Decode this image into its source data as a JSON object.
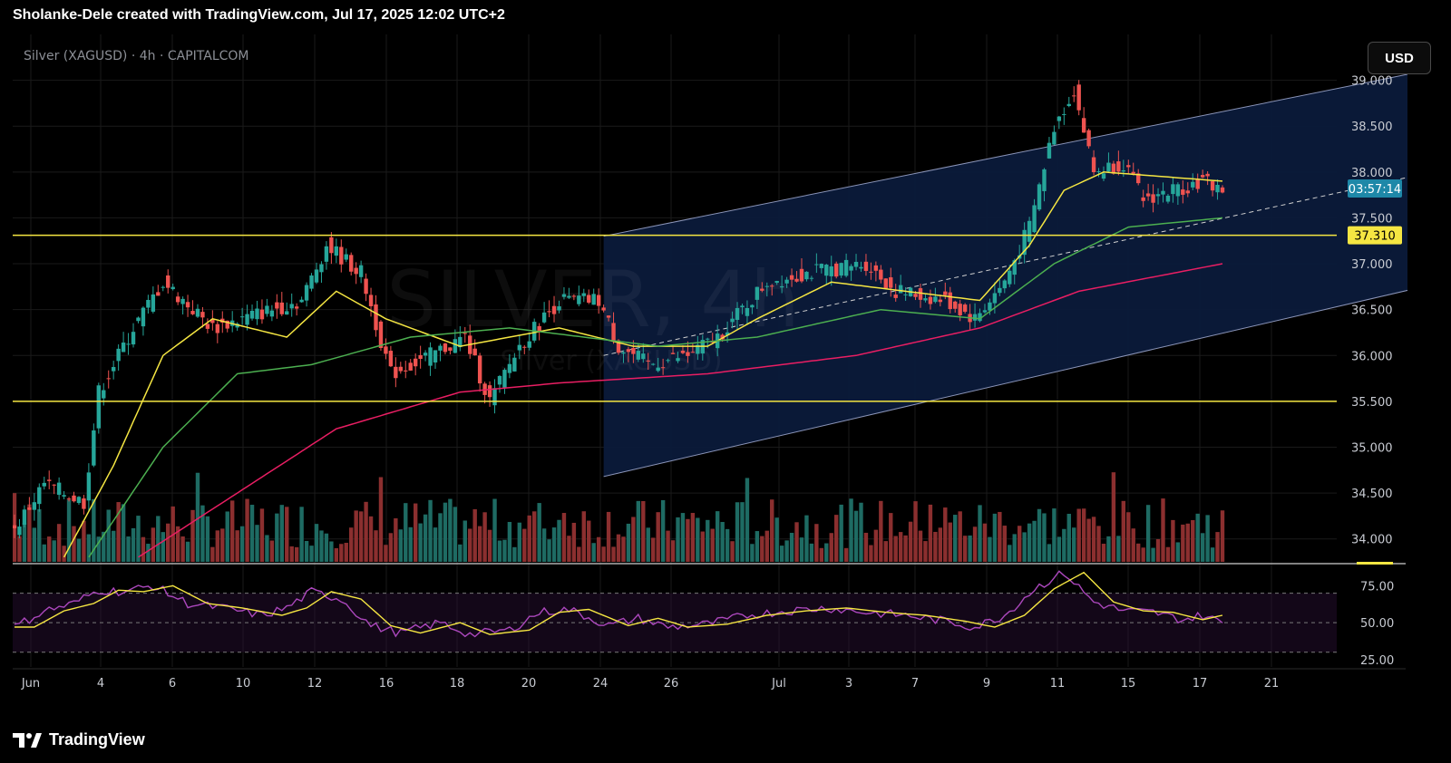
{
  "header": {
    "text": "Sholanke-Dele created with TradingView.com, Jul 17, 2025 12:02 UTC+2"
  },
  "symbol_label": "Silver (XAGUSD) · 4h · CAPITALCOM",
  "watermark": {
    "line1": "SILVER, 4h",
    "line2": "Silver (XAGUSD)"
  },
  "currency_button": "USD",
  "countdown_tag": "03:57:14",
  "level_tag": "37.310",
  "footer": {
    "brand": "TradingView"
  },
  "colors": {
    "bull": "#26a69a",
    "bear": "#ef5350",
    "bull_volume": "#1e6b63",
    "bear_volume": "#8b2f2f",
    "ma_yellow": "#f5e642",
    "ma_green": "#4caf50",
    "ma_red": "#e91e63",
    "channel_fill": "#0b1a3a",
    "horizontal_line": "#f5e642",
    "rsi_line": "#ab47bc",
    "rsi_ma": "#f5e642"
  },
  "chart_data": {
    "type": "candlestick",
    "title": "Silver (XAGUSD) · 4h · CAPITALCOM",
    "x_ticks": [
      "Jun",
      "4",
      "6",
      "10",
      "12",
      "16",
      "18",
      "20",
      "24",
      "26",
      "Jul",
      "3",
      "7",
      "9",
      "11",
      "15",
      "17",
      "21"
    ],
    "y_ticks": [
      "39.000",
      "38.500",
      "38.000",
      "37.500",
      "37.000",
      "36.500",
      "36.000",
      "35.500",
      "35.000",
      "34.500",
      "34.000"
    ],
    "ylim": [
      33.75,
      39.5
    ],
    "horizontal_levels": [
      37.31,
      35.5
    ],
    "last_price": 37.82,
    "price_keyframes": [
      [
        0,
        34.1
      ],
      [
        6,
        34.6
      ],
      [
        14,
        34.4
      ],
      [
        17,
        35.6
      ],
      [
        24,
        36.3
      ],
      [
        30,
        36.8
      ],
      [
        40,
        36.3
      ],
      [
        52,
        36.5
      ],
      [
        58,
        36.6
      ],
      [
        63,
        37.2
      ],
      [
        70,
        36.9
      ],
      [
        76,
        35.8
      ],
      [
        84,
        36.0
      ],
      [
        91,
        36.2
      ],
      [
        96,
        35.5
      ],
      [
        102,
        36.1
      ],
      [
        110,
        36.6
      ],
      [
        118,
        36.6
      ],
      [
        122,
        36.1
      ],
      [
        128,
        35.9
      ],
      [
        136,
        36.0
      ],
      [
        142,
        36.2
      ],
      [
        152,
        36.8
      ],
      [
        160,
        36.9
      ],
      [
        172,
        37.0
      ],
      [
        178,
        36.7
      ],
      [
        188,
        36.6
      ],
      [
        194,
        36.4
      ],
      [
        200,
        36.8
      ],
      [
        205,
        37.4
      ],
      [
        210,
        38.5
      ],
      [
        214,
        38.9
      ],
      [
        218,
        38.0
      ],
      [
        224,
        38.1
      ],
      [
        228,
        37.7
      ],
      [
        234,
        37.8
      ],
      [
        240,
        37.9
      ],
      [
        244,
        37.82
      ]
    ],
    "channel": {
      "upper": [
        [
          119,
          37.3
        ],
        [
          303,
          39.3
        ]
      ],
      "lower": [
        [
          119,
          34.68
        ],
        [
          303,
          36.98
        ]
      ],
      "mid_dashed": [
        [
          119,
          36.0
        ],
        [
          303,
          38.2
        ]
      ]
    },
    "moving_averages": [
      {
        "color": "yellow",
        "keyframes": [
          [
            10,
            33.8
          ],
          [
            20,
            34.8
          ],
          [
            30,
            36.0
          ],
          [
            40,
            36.4
          ],
          [
            55,
            36.2
          ],
          [
            65,
            36.7
          ],
          [
            75,
            36.4
          ],
          [
            90,
            36.1
          ],
          [
            110,
            36.3
          ],
          [
            125,
            36.1
          ],
          [
            140,
            36.1
          ],
          [
            150,
            36.4
          ],
          [
            165,
            36.8
          ],
          [
            180,
            36.7
          ],
          [
            195,
            36.6
          ],
          [
            205,
            37.2
          ],
          [
            212,
            37.8
          ],
          [
            220,
            38.0
          ],
          [
            244,
            37.9
          ]
        ]
      },
      {
        "color": "green",
        "keyframes": [
          [
            15,
            33.8
          ],
          [
            30,
            35.0
          ],
          [
            45,
            35.8
          ],
          [
            60,
            35.9
          ],
          [
            80,
            36.2
          ],
          [
            100,
            36.3
          ],
          [
            130,
            36.1
          ],
          [
            150,
            36.2
          ],
          [
            175,
            36.5
          ],
          [
            195,
            36.4
          ],
          [
            210,
            37.0
          ],
          [
            225,
            37.4
          ],
          [
            244,
            37.5
          ]
        ]
      },
      {
        "color": "red",
        "keyframes": [
          [
            25,
            33.8
          ],
          [
            45,
            34.5
          ],
          [
            65,
            35.2
          ],
          [
            90,
            35.6
          ],
          [
            110,
            35.7
          ],
          [
            140,
            35.8
          ],
          [
            170,
            36.0
          ],
          [
            195,
            36.3
          ],
          [
            215,
            36.7
          ],
          [
            244,
            37.0
          ]
        ]
      }
    ],
    "rsi": {
      "y_ticks": [
        "75.00",
        "50.00",
        "25.00"
      ],
      "ylim": [
        20,
        90
      ],
      "bands": [
        70,
        30
      ],
      "last_value": 50,
      "keyframes": [
        [
          0,
          47
        ],
        [
          6,
          58
        ],
        [
          12,
          63
        ],
        [
          17,
          72
        ],
        [
          22,
          71
        ],
        [
          28,
          75
        ],
        [
          35,
          63
        ],
        [
          42,
          60
        ],
        [
          50,
          55
        ],
        [
          55,
          60
        ],
        [
          60,
          71
        ],
        [
          66,
          66
        ],
        [
          72,
          48
        ],
        [
          78,
          43
        ],
        [
          86,
          50
        ],
        [
          92,
          42
        ],
        [
          100,
          45
        ],
        [
          106,
          57
        ],
        [
          112,
          59
        ],
        [
          120,
          48
        ],
        [
          126,
          53
        ],
        [
          132,
          47
        ],
        [
          140,
          49
        ],
        [
          148,
          55
        ],
        [
          156,
          58
        ],
        [
          164,
          60
        ],
        [
          172,
          57
        ],
        [
          180,
          55
        ],
        [
          188,
          51
        ],
        [
          194,
          47
        ],
        [
          200,
          55
        ],
        [
          206,
          73
        ],
        [
          212,
          84
        ],
        [
          218,
          64
        ],
        [
          224,
          58
        ],
        [
          230,
          57
        ],
        [
          236,
          52
        ],
        [
          240,
          55
        ],
        [
          244,
          50
        ]
      ]
    }
  }
}
